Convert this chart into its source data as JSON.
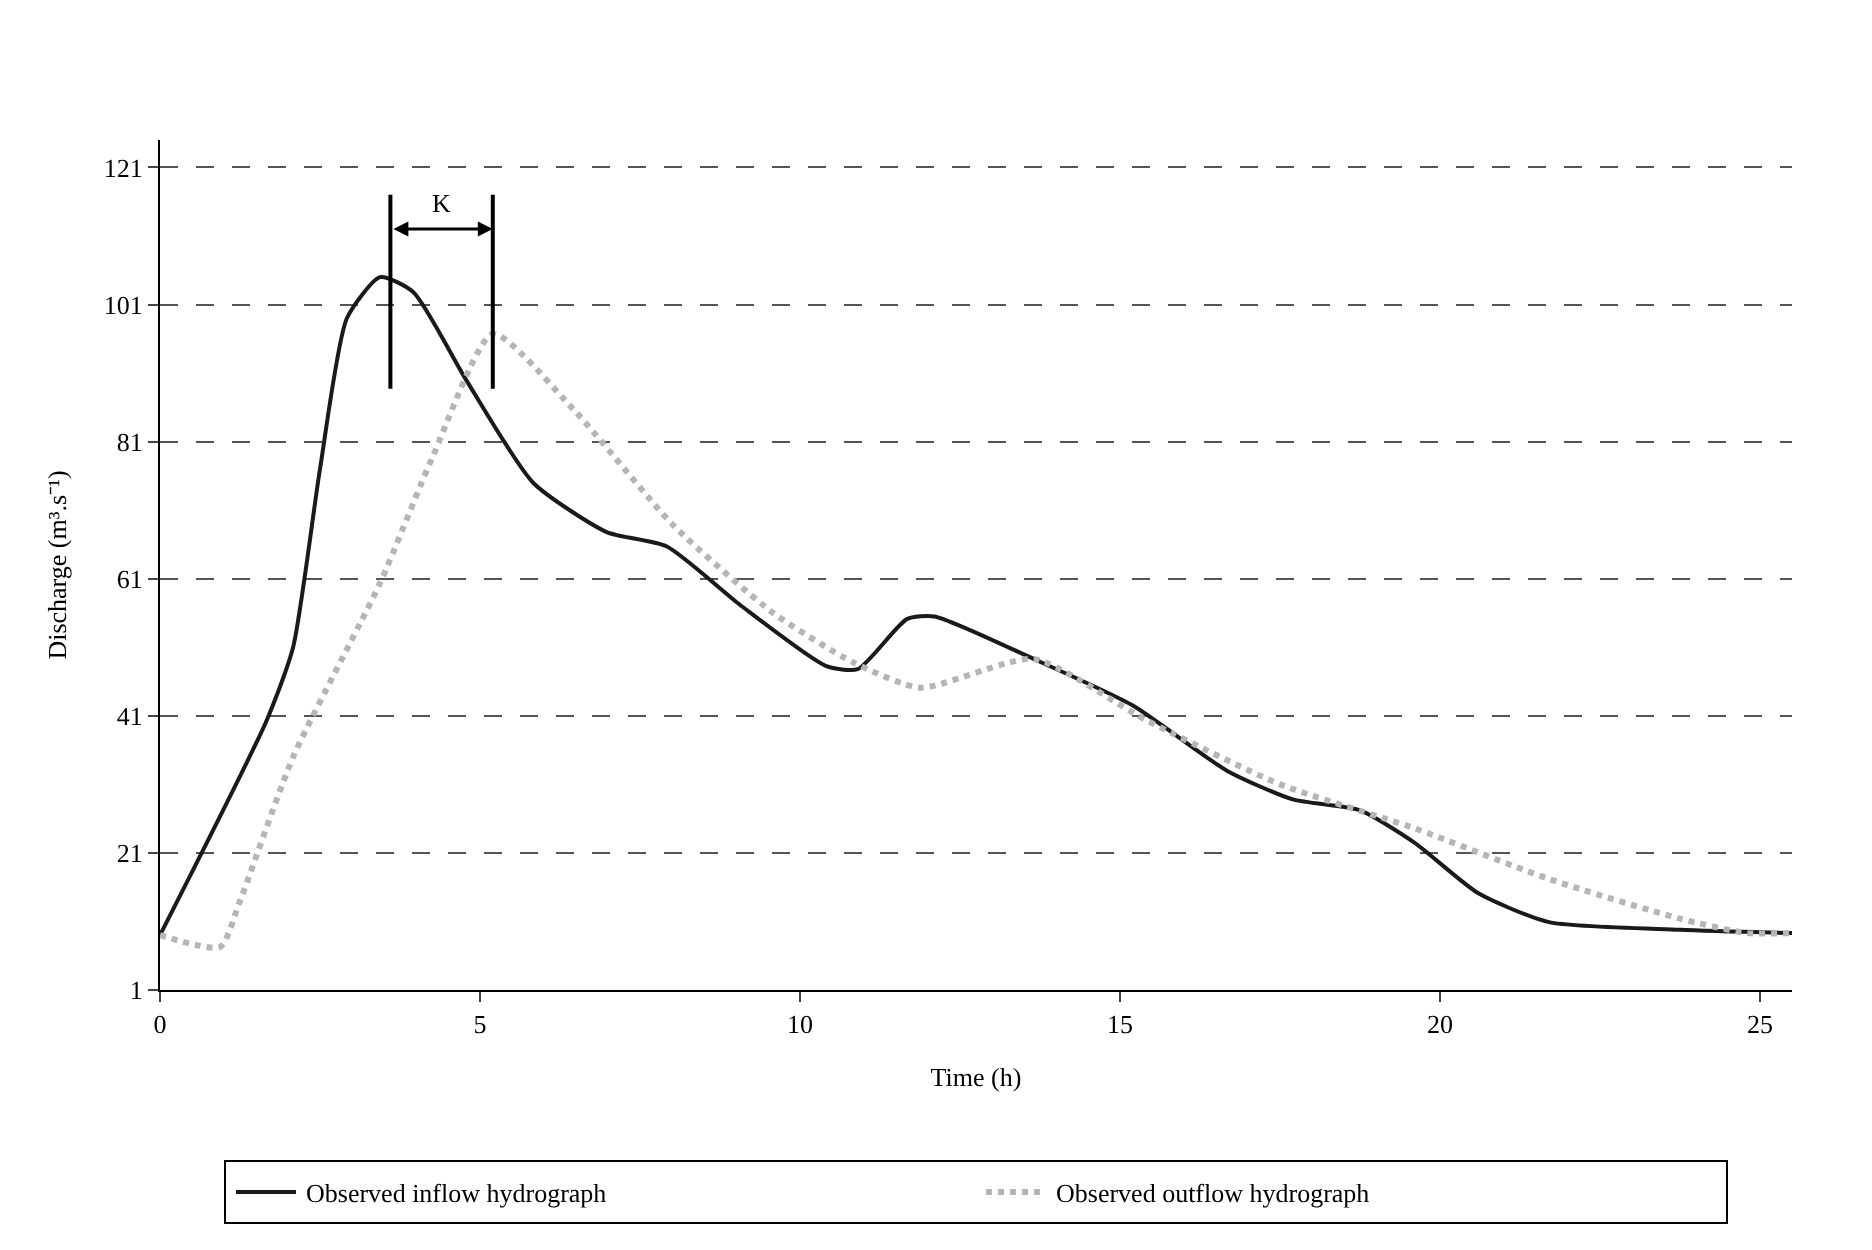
{
  "chart_data": {
    "type": "line",
    "xlabel": "Time (h)",
    "ylabel": "Discharge (m³.s⁻¹)",
    "xlim": [
      0,
      25.5
    ],
    "xticks": [
      0,
      5,
      10,
      15,
      20,
      25
    ],
    "ylim": [
      1,
      125
    ],
    "yticks": [
      1,
      21,
      41,
      61,
      81,
      101,
      121
    ],
    "grid": "y",
    "legend": "bottom",
    "marker": "none",
    "annotations": [
      "K"
    ],
    "ref_lines": [
      {
        "axis": "x",
        "value": 3.6,
        "color": "#000000"
      },
      {
        "axis": "x",
        "value": 5.2,
        "color": "#000000"
      }
    ],
    "series": [
      {
        "name": "Observed inflow hydrograph",
        "color": "#1a1a1a",
        "line_style": "solid",
        "x": [
          0,
          1.67,
          2.08,
          2.5,
          2.92,
          3.44,
          3.96,
          4.79,
          5.83,
          6.98,
          7.92,
          9.06,
          10.4,
          10.9,
          11.67,
          12.1,
          13.65,
          15.2,
          16.67,
          17.7,
          18.75,
          19.6,
          20.6,
          21.7,
          23.75,
          25.5
        ],
        "values": [
          9,
          40.4,
          51,
          77,
          99,
          105,
          102.8,
          89.9,
          75,
          67.8,
          65.7,
          57.2,
          48.3,
          47.8,
          55.1,
          55.5,
          49.3,
          42.5,
          33,
          28.8,
          27.2,
          22.5,
          15.1,
          10.9,
          9.8,
          9.3
        ]
      },
      {
        "name": "Observed outflow hydrograph",
        "color": "#b5b5b5",
        "line_style": "dotted",
        "x": [
          0,
          0.94,
          1.25,
          2.08,
          3.44,
          4.27,
          5.2,
          6.46,
          8.02,
          9.58,
          10.83,
          11.88,
          13.65,
          15.4,
          17.5,
          19.6,
          21.7,
          23.75,
          24.8,
          25.5
        ],
        "values": [
          9,
          7.3,
          14,
          35,
          60.4,
          79,
          96.7,
          85.7,
          68.8,
          56,
          48.8,
          45.1,
          49.3,
          40.4,
          31,
          24.6,
          17.2,
          11.4,
          9.3,
          9.3
        ]
      }
    ]
  }
}
